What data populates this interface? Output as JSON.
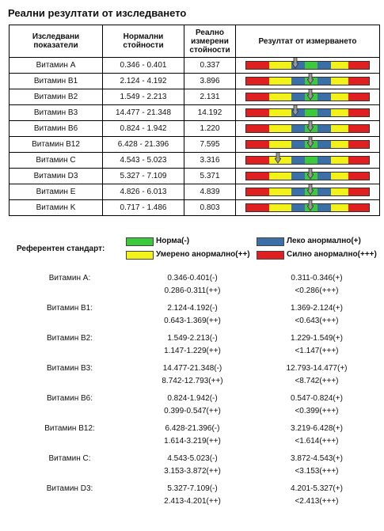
{
  "title": "Реални резултати от изследването",
  "table": {
    "headers": [
      "Изследвани показатели",
      "Нормални стойности",
      "Реално измерени стойности",
      "Резултат от измерването"
    ],
    "rows": [
      {
        "name": "Витамин А",
        "normal": "0.346 - 0.401",
        "value": "0.337",
        "marker": 0.4
      },
      {
        "name": "Витамин B1",
        "normal": "2.124 - 4.192",
        "value": "3.896",
        "marker": 0.52
      },
      {
        "name": "Витамин B2",
        "normal": "1.549 - 2.213",
        "value": "2.131",
        "marker": 0.52
      },
      {
        "name": "Витамин B3",
        "normal": "14.477 - 21.348",
        "value": "14.192",
        "marker": 0.4
      },
      {
        "name": "Витамин B6",
        "normal": "0.824 - 1.942",
        "value": "1.220",
        "marker": 0.52
      },
      {
        "name": "Витамин B12",
        "normal": "6.428 - 21.396",
        "value": "7.595",
        "marker": 0.52
      },
      {
        "name": "Витамин C",
        "normal": "4.543 - 5.023",
        "value": "3.316",
        "marker": 0.26
      },
      {
        "name": "Витамин D3",
        "normal": "5.327 - 7.109",
        "value": "5.371",
        "marker": 0.52
      },
      {
        "name": "Витамин E",
        "normal": "4.826 - 6.013",
        "value": "4.839",
        "marker": 0.52
      },
      {
        "name": "Витамин K",
        "normal": "0.717 - 1.486",
        "value": "0.803",
        "marker": 0.52
      }
    ]
  },
  "colors": {
    "red": "#e02020",
    "yellow": "#f2f21a",
    "blue": "#3a6fa8",
    "green": "#3cc93c",
    "arrow": "#9a9a9a"
  },
  "legend": {
    "label": "Референтен стандарт:",
    "normal": "Норма(-)",
    "light": "Леко анормално(+)",
    "moderate": "Умерено анормално(++)",
    "severe": "Силно анормално(+++)"
  },
  "reference": [
    {
      "name": "Витамин А:",
      "v1": "0.346-0.401(-)",
      "v2": "0.311-0.346(+)",
      "v3": "0.286-0.311(++)",
      "v4": "<0.286(+++)"
    },
    {
      "name": "Витамин B1:",
      "v1": "2.124-4.192(-)",
      "v2": "1.369-2.124(+)",
      "v3": "0.643-1.369(++)",
      "v4": "<0.643(+++)"
    },
    {
      "name": "Витамин B2:",
      "v1": "1.549-2.213(-)",
      "v2": "1.229-1.549(+)",
      "v3": "1.147-1.229(++)",
      "v4": "<1.147(+++)"
    },
    {
      "name": "Витамин B3:",
      "v1": "14.477-21.348(-)",
      "v2": "12.793-14.477(+)",
      "v3": "8.742-12.793(++)",
      "v4": "<8.742(+++)"
    },
    {
      "name": "Витамин B6:",
      "v1": "0.824-1.942(-)",
      "v2": "0.547-0.824(+)",
      "v3": "0.399-0.547(++)",
      "v4": "<0.399(+++)"
    },
    {
      "name": "Витамин B12:",
      "v1": "6.428-21.396(-)",
      "v2": "3.219-6.428(+)",
      "v3": "1.614-3.219(++)",
      "v4": "<1.614(+++)"
    },
    {
      "name": "Витамин C:",
      "v1": "4.543-5.023(-)",
      "v2": "3.872-4.543(+)",
      "v3": "3.153-3.872(++)",
      "v4": "<3.153(+++)"
    },
    {
      "name": "Витамин D3:",
      "v1": "5.327-7.109(-)",
      "v2": "4.201-5.327(+)",
      "v3": "2.413-4.201(++)",
      "v4": "<2.413(+++)"
    }
  ]
}
